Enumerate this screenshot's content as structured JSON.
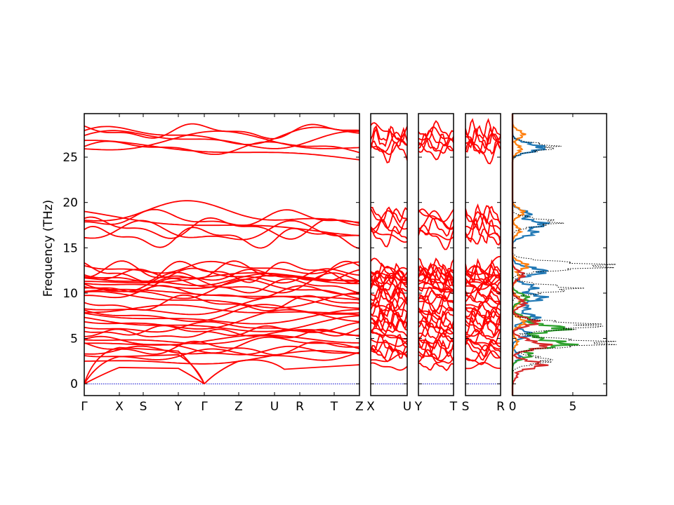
{
  "chart_data": [
    {
      "type": "line",
      "panel": "band-structure",
      "ylabel": "Frequency (THz)",
      "ylim": [
        -1.3,
        29.8
      ],
      "yticks": [
        0,
        5,
        10,
        15,
        20,
        25
      ],
      "segments": [
        {
          "from": "Γ",
          "to": "X"
        },
        {
          "from": "X",
          "to": "S"
        },
        {
          "from": "S",
          "to": "Y"
        },
        {
          "from": "Y",
          "to": "Γ"
        },
        {
          "from": "Γ",
          "to": "Z"
        },
        {
          "from": "Z",
          "to": "U"
        },
        {
          "from": "U",
          "to": "R"
        },
        {
          "from": "R",
          "to": "T"
        },
        {
          "from": "T",
          "to": "Z"
        }
      ],
      "xticks": [
        "Γ",
        "X",
        "S",
        "Y",
        "Γ",
        "Z",
        "U",
        "R",
        "T",
        "Z"
      ],
      "band_color": "#ff0000",
      "zero_line_color": "#0000cc",
      "band_groups": {
        "acoustic_top": 1.8,
        "low": [
          0,
          13.2
        ],
        "mid": [
          15.7,
          19.2
        ],
        "high": [
          25.0,
          28.2
        ]
      },
      "grid": false,
      "legend": "none"
    },
    {
      "type": "line",
      "panel": "band-structure",
      "xticks": [
        "X",
        "U"
      ],
      "ylim": [
        -1.3,
        29.8
      ]
    },
    {
      "type": "line",
      "panel": "band-structure",
      "xticks": [
        "Y",
        "T"
      ],
      "ylim": [
        -1.3,
        29.8
      ]
    },
    {
      "type": "line",
      "panel": "band-structure",
      "xticks": [
        "S",
        "R"
      ],
      "ylim": [
        -1.3,
        29.8
      ]
    },
    {
      "type": "line",
      "panel": "projected-dos",
      "xlim": [
        0,
        7.8
      ],
      "xticks": [
        0,
        5
      ],
      "ylim": [
        -1.3,
        29.8
      ],
      "series": [
        {
          "color": "#1f77b4",
          "values": [
            [
              0.4,
              12.9
            ],
            [
              2.6,
              12.4
            ],
            [
              1.8,
              10.6
            ],
            [
              2.5,
              9.5
            ],
            [
              1.3,
              8.4
            ],
            [
              2.0,
              7.3
            ],
            [
              1.4,
              5.5
            ],
            [
              0.6,
              3.0
            ],
            [
              1.4,
              18.7
            ],
            [
              2.6,
              17.6
            ],
            [
              1.8,
              16.7
            ],
            [
              1.8,
              26.2
            ],
            [
              2.5,
              26.0
            ]
          ]
        },
        {
          "color": "#ff7f0e",
          "values": [
            [
              1.2,
              13.0
            ],
            [
              0.6,
              11.8
            ],
            [
              0.7,
              9.2
            ],
            [
              1.0,
              6.8
            ],
            [
              0.4,
              4.6
            ],
            [
              0.9,
              18.9
            ],
            [
              0.6,
              16.9
            ],
            [
              0.9,
              27.5
            ],
            [
              0.7,
              25.9
            ]
          ]
        },
        {
          "color": "#2ca02c",
          "values": [
            [
              1.2,
              9.5
            ],
            [
              1.6,
              7.0
            ],
            [
              4.2,
              6.1
            ],
            [
              2.3,
              5.0
            ],
            [
              4.5,
              4.4
            ],
            [
              1.5,
              3.2
            ]
          ]
        },
        {
          "color": "#d62728",
          "values": [
            [
              0.9,
              12.0
            ],
            [
              1.0,
              8.9
            ],
            [
              2.0,
              6.8
            ],
            [
              1.7,
              4.6
            ],
            [
              2.8,
              4.2
            ],
            [
              2.4,
              2.1
            ],
            [
              0.4,
              1.0
            ]
          ]
        },
        {
          "color": "#000000",
          "style": "dotted",
          "name": "",
          "values": [
            [
              7.5,
              13.0
            ],
            [
              4.8,
              10.5
            ],
            [
              6.8,
              6.4
            ],
            [
              7.6,
              4.5
            ],
            [
              3.0,
              2.6
            ],
            [
              3.5,
              17.8
            ],
            [
              3.4,
              26.1
            ]
          ]
        }
      ]
    }
  ]
}
